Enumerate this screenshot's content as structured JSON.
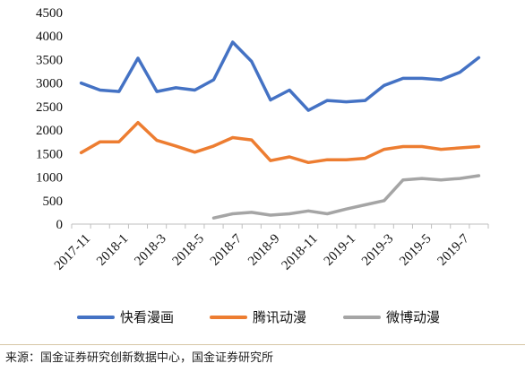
{
  "chart_data": {
    "type": "line",
    "title": "",
    "xlabel": "",
    "ylabel": "",
    "ylim": [
      0,
      4500
    ],
    "yticks": [
      0,
      500,
      1000,
      1500,
      2000,
      2500,
      3000,
      3500,
      4000,
      4500
    ],
    "x": [
      "2017-11",
      "2017-12",
      "2018-1",
      "2018-2",
      "2018-3",
      "2018-4",
      "2018-5",
      "2018-6",
      "2018-7",
      "2018-8",
      "2018-9",
      "2018-10",
      "2018-11",
      "2018-12",
      "2019-1",
      "2019-2",
      "2019-3",
      "2019-4",
      "2019-5",
      "2019-6",
      "2019-7",
      "2019-8"
    ],
    "xtick_labels": [
      "2017-11",
      "2018-1",
      "2018-3",
      "2018-5",
      "2018-7",
      "2018-9",
      "2018-11",
      "2019-1",
      "2019-3",
      "2019-5",
      "2019-7"
    ],
    "grid": false,
    "legend_position": "bottom",
    "series": [
      {
        "name": "快看漫画",
        "color": "#4472c4",
        "values": [
          3000,
          2850,
          2820,
          3530,
          2820,
          2900,
          2850,
          3070,
          3870,
          3460,
          2640,
          2850,
          2420,
          2630,
          2600,
          2630,
          2950,
          3100,
          3100,
          3070,
          3230,
          3540
        ]
      },
      {
        "name": "腾讯动漫",
        "color": "#ed7d31",
        "values": [
          1520,
          1750,
          1750,
          2160,
          1780,
          1660,
          1530,
          1660,
          1840,
          1790,
          1350,
          1430,
          1310,
          1370,
          1370,
          1400,
          1590,
          1650,
          1650,
          1590,
          1620,
          1650
        ]
      },
      {
        "name": "微博动漫",
        "color": "#a5a5a5",
        "values": [
          null,
          null,
          null,
          null,
          null,
          null,
          null,
          130,
          220,
          250,
          190,
          220,
          280,
          220,
          320,
          410,
          500,
          940,
          970,
          940,
          970,
          1030
        ]
      }
    ]
  },
  "source": "来源：国金证券研究创新数据中心，国金证券研究所"
}
